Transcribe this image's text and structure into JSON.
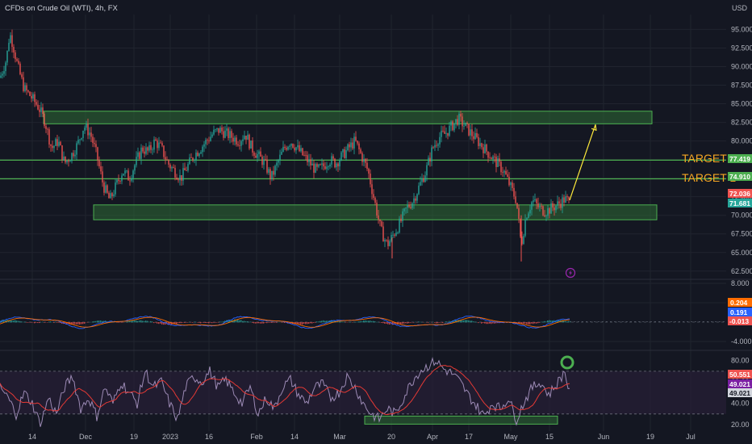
{
  "header": {
    "title": "CFDs on Crude Oil (WTI), 4h, FX",
    "currency": "USD"
  },
  "colors": {
    "background": "#141722",
    "grid": "#20242f",
    "bull": "#26a69a",
    "bear": "#ef5350",
    "zone_fill": "#2e6b35",
    "zone_border": "#4caf50",
    "level_line": "#4caf50",
    "arrow": "#ffeb3b",
    "target_text": "#f5a623",
    "macd_line": "#2962ff",
    "signal_line": "#ff6d00",
    "rsi_line": "#9c8ab5",
    "rsi_ma": "#e53935",
    "rsi_band": "#2a1f3a",
    "circle": "#4caf50",
    "bolt": "#9c27b0"
  },
  "chart_data": [
    {
      "type": "line",
      "name": "price",
      "ylim": [
        61.5,
        97
      ],
      "y_ticks": [
        "95.000",
        "92.500",
        "90.000",
        "87.500",
        "85.000",
        "82.500",
        "80.000",
        "77.500",
        "75.000",
        "72.500",
        "70.000",
        "67.500",
        "65.000",
        "62.500"
      ],
      "x_ticks": [
        "14",
        "Dec",
        "19",
        "2023",
        "16",
        "Feb",
        "14",
        "Mar",
        "20",
        "Apr",
        "17",
        "May",
        "15",
        "Jun",
        "19",
        "Jul"
      ],
      "close_points": [
        [
          0,
          88.5
        ],
        [
          8,
          91
        ],
        [
          12,
          94.5
        ],
        [
          16,
          93
        ],
        [
          22,
          90
        ],
        [
          30,
          87
        ],
        [
          38,
          86
        ],
        [
          48,
          84.5
        ],
        [
          56,
          82.5
        ],
        [
          64,
          79
        ],
        [
          72,
          80
        ],
        [
          80,
          77
        ],
        [
          88,
          78
        ],
        [
          96,
          79.5
        ],
        [
          104,
          82
        ],
        [
          112,
          81
        ],
        [
          120,
          78
        ],
        [
          128,
          74
        ],
        [
          136,
          72
        ],
        [
          144,
          74
        ],
        [
          152,
          76
        ],
        [
          160,
          75
        ],
        [
          168,
          77
        ],
        [
          176,
          79
        ],
        [
          184,
          78.5
        ],
        [
          192,
          80
        ],
        [
          200,
          79
        ],
        [
          208,
          77
        ],
        [
          216,
          76
        ],
        [
          224,
          75
        ],
        [
          232,
          76.5
        ],
        [
          240,
          78
        ],
        [
          248,
          79
        ],
        [
          256,
          80
        ],
        [
          264,
          81
        ],
        [
          272,
          81.5
        ],
        [
          280,
          81
        ],
        [
          288,
          80.5
        ],
        [
          296,
          80
        ],
        [
          304,
          81
        ],
        [
          312,
          79
        ],
        [
          320,
          78
        ],
        [
          328,
          77
        ],
        [
          336,
          75
        ],
        [
          344,
          77
        ],
        [
          352,
          79
        ],
        [
          360,
          80
        ],
        [
          368,
          79
        ],
        [
          376,
          78
        ],
        [
          384,
          77
        ],
        [
          392,
          76
        ],
        [
          400,
          76.5
        ],
        [
          408,
          77.5
        ],
        [
          416,
          77
        ],
        [
          424,
          78
        ],
        [
          432,
          79
        ],
        [
          440,
          80
        ],
        [
          448,
          78
        ],
        [
          456,
          76
        ],
        [
          464,
          72
        ],
        [
          472,
          68
        ],
        [
          480,
          66
        ],
        [
          488,
          67.5
        ],
        [
          496,
          69
        ],
        [
          504,
          71
        ],
        [
          512,
          72
        ],
        [
          520,
          74
        ],
        [
          528,
          76
        ],
        [
          536,
          79
        ],
        [
          544,
          80.5
        ],
        [
          552,
          81
        ],
        [
          560,
          82
        ],
        [
          568,
          83
        ],
        [
          576,
          82
        ],
        [
          584,
          81
        ],
        [
          592,
          80
        ],
        [
          600,
          79
        ],
        [
          608,
          78
        ],
        [
          616,
          77
        ],
        [
          624,
          76
        ],
        [
          632,
          74
        ],
        [
          640,
          72
        ],
        [
          646,
          66
        ],
        [
          652,
          70
        ],
        [
          660,
          72
        ],
        [
          668,
          71
        ],
        [
          676,
          70.5
        ],
        [
          684,
          71
        ],
        [
          692,
          71.5
        ],
        [
          700,
          72.2
        ],
        [
          706,
          71.7
        ]
      ],
      "support_zone": [
        69.4,
        71.4
      ],
      "resistance_zone": [
        82.3,
        84.0
      ],
      "target1": 74.91,
      "target2": 77.419,
      "projection_to": 82.2,
      "last": 72.036,
      "prev": 71.681,
      "labels": {
        "target1": "TARGET 1",
        "target2": "TARGET 2"
      },
      "price_tags": {
        "t2": "77.419",
        "t1": "74.910",
        "last": "72.036",
        "prev": "71.681"
      }
    },
    {
      "type": "line",
      "name": "macd",
      "ylim": [
        -5.5,
        8.5
      ],
      "y_ticks": [
        "8.000",
        "4.000",
        "-4.000"
      ],
      "tags": {
        "a": "0.204",
        "b": "0.191",
        "c": "-0.013"
      }
    },
    {
      "type": "line",
      "name": "rsi",
      "ylim": [
        14,
        88
      ],
      "y_ticks": [
        "80.00",
        "60.00",
        "40.00",
        "20.00"
      ],
      "band": [
        30,
        70
      ],
      "rsi_points": [
        [
          0,
          55
        ],
        [
          10,
          45
        ],
        [
          20,
          30
        ],
        [
          30,
          50
        ],
        [
          40,
          40
        ],
        [
          50,
          20
        ],
        [
          60,
          45
        ],
        [
          70,
          30
        ],
        [
          80,
          55
        ],
        [
          90,
          65
        ],
        [
          100,
          35
        ],
        [
          110,
          45
        ],
        [
          120,
          28
        ],
        [
          130,
          55
        ],
        [
          140,
          40
        ],
        [
          150,
          60
        ],
        [
          160,
          50
        ],
        [
          170,
          40
        ],
        [
          180,
          70
        ],
        [
          190,
          55
        ],
        [
          200,
          60
        ],
        [
          210,
          40
        ],
        [
          220,
          25
        ],
        [
          230,
          55
        ],
        [
          240,
          65
        ],
        [
          250,
          60
        ],
        [
          260,
          70
        ],
        [
          270,
          55
        ],
        [
          280,
          62
        ],
        [
          290,
          50
        ],
        [
          300,
          40
        ],
        [
          310,
          55
        ],
        [
          320,
          30
        ],
        [
          330,
          45
        ],
        [
          340,
          35
        ],
        [
          350,
          55
        ],
        [
          360,
          62
        ],
        [
          370,
          48
        ],
        [
          380,
          40
        ],
        [
          390,
          55
        ],
        [
          400,
          58
        ],
        [
          410,
          45
        ],
        [
          420,
          50
        ],
        [
          430,
          65
        ],
        [
          440,
          55
        ],
        [
          450,
          40
        ],
        [
          460,
          30
        ],
        [
          470,
          25
        ],
        [
          480,
          35
        ],
        [
          490,
          30
        ],
        [
          500,
          45
        ],
        [
          510,
          60
        ],
        [
          520,
          70
        ],
        [
          530,
          75
        ],
        [
          540,
          80
        ],
        [
          550,
          72
        ],
        [
          560,
          68
        ],
        [
          570,
          60
        ],
        [
          580,
          48
        ],
        [
          590,
          38
        ],
        [
          600,
          28
        ],
        [
          610,
          40
        ],
        [
          620,
          35
        ],
        [
          630,
          45
        ],
        [
          640,
          25
        ],
        [
          650,
          42
        ],
        [
          660,
          55
        ],
        [
          670,
          60
        ],
        [
          680,
          48
        ],
        [
          690,
          58
        ],
        [
          700,
          70
        ],
        [
          706,
          49
        ]
      ],
      "support_zone": [
        20.5,
        28
      ],
      "tags": {
        "a": "50.551",
        "b": "49.021",
        "c": "49.021"
      }
    }
  ]
}
